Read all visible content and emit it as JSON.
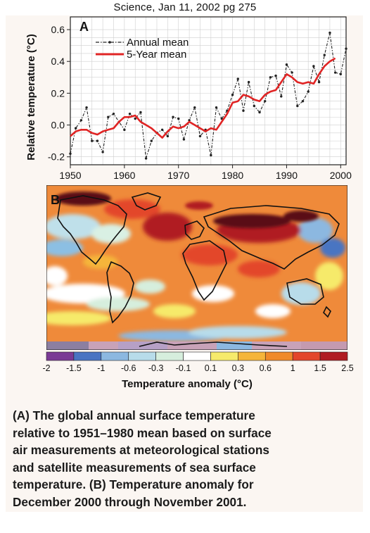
{
  "header": {
    "text": "Science, Jan 11, 2002 pg 275"
  },
  "chart_data": [
    {
      "type": "line",
      "panel_label": "A",
      "ylabel": "Relative temperature (°C)",
      "xlim": [
        1950,
        2001
      ],
      "ylim": [
        -0.25,
        0.68
      ],
      "x_ticks": [
        1950,
        1960,
        1970,
        1980,
        1990,
        2000
      ],
      "x_tick_labels": [
        "1950",
        "1960",
        "1970",
        "1980",
        "1990",
        "2000"
      ],
      "y_ticks": [
        -0.2,
        0.0,
        0.2,
        0.4,
        0.6
      ],
      "y_tick_labels": [
        "-0.2",
        "0.0",
        "0.2",
        "0.4",
        "0.6"
      ],
      "grid": true,
      "legend_position": "top-left",
      "series": [
        {
          "name": "Annual mean",
          "style": "dash-dot-markers",
          "color": "#222222",
          "x": [
            1950,
            1951,
            1952,
            1953,
            1954,
            1955,
            1956,
            1957,
            1958,
            1959,
            1960,
            1961,
            1962,
            1963,
            1964,
            1965,
            1966,
            1967,
            1968,
            1969,
            1970,
            1971,
            1972,
            1973,
            1974,
            1975,
            1976,
            1977,
            1978,
            1979,
            1980,
            1981,
            1982,
            1983,
            1984,
            1985,
            1986,
            1987,
            1988,
            1989,
            1990,
            1991,
            1992,
            1993,
            1994,
            1995,
            1996,
            1997,
            1998,
            1999,
            2000,
            2001
          ],
          "values": [
            -0.18,
            -0.02,
            0.03,
            0.11,
            -0.1,
            -0.1,
            -0.17,
            0.05,
            0.07,
            0.02,
            -0.03,
            0.07,
            0.04,
            0.08,
            -0.21,
            -0.1,
            -0.05,
            -0.03,
            -0.07,
            0.05,
            0.04,
            -0.09,
            0.03,
            0.11,
            -0.07,
            -0.03,
            -0.19,
            0.11,
            0.04,
            0.09,
            0.19,
            0.29,
            0.09,
            0.27,
            0.12,
            0.08,
            0.15,
            0.3,
            0.31,
            0.18,
            0.38,
            0.33,
            0.12,
            0.15,
            0.21,
            0.37,
            0.27,
            0.44,
            0.58,
            0.33,
            0.32,
            0.48
          ]
        },
        {
          "name": "5-Year mean",
          "style": "solid",
          "color": "#e02424",
          "x": [
            1950,
            1951,
            1952,
            1953,
            1954,
            1955,
            1956,
            1957,
            1958,
            1959,
            1960,
            1961,
            1962,
            1963,
            1964,
            1965,
            1966,
            1967,
            1968,
            1969,
            1970,
            1971,
            1972,
            1973,
            1974,
            1975,
            1976,
            1977,
            1978,
            1979,
            1980,
            1981,
            1982,
            1983,
            1984,
            1985,
            1986,
            1987,
            1988,
            1989,
            1990,
            1991,
            1992,
            1993,
            1994,
            1995,
            1996,
            1997,
            1998,
            1999
          ],
          "values": [
            -0.07,
            -0.04,
            -0.03,
            -0.03,
            -0.05,
            -0.06,
            -0.04,
            -0.03,
            -0.02,
            0.02,
            0.05,
            0.05,
            0.06,
            0.02,
            0.0,
            -0.02,
            -0.05,
            -0.08,
            -0.04,
            -0.01,
            -0.02,
            -0.01,
            0.02,
            0.0,
            -0.02,
            -0.04,
            -0.02,
            -0.03,
            0.02,
            0.07,
            0.14,
            0.15,
            0.19,
            0.18,
            0.16,
            0.15,
            0.19,
            0.21,
            0.22,
            0.27,
            0.32,
            0.3,
            0.27,
            0.26,
            0.27,
            0.26,
            0.32,
            0.37,
            0.4,
            0.42
          ]
        }
      ]
    },
    {
      "type": "heatmap",
      "panel_label": "B",
      "description_type": "world-map",
      "grid": false
    },
    {
      "type": "colorbar",
      "title": "Temperature anomaly (°C)",
      "tick_labels": [
        "-2",
        "-1.5",
        "-1",
        "-0.6",
        "-0.3",
        "-0.1",
        "0.1",
        "0.3",
        "0.6",
        "1",
        "1.5",
        "2.5"
      ],
      "colors": [
        "#7a3a95",
        "#4a74c2",
        "#8cb8e0",
        "#b8dcea",
        "#d6eedd",
        "#ffffff",
        "#f6ea6b",
        "#f5b53a",
        "#f08a2a",
        "#e3462a",
        "#b01c22",
        "#5a0e14"
      ]
    }
  ],
  "caption": {
    "lines": [
      "(A) The global annual surface temperature",
      "relative to 1951–1980 mean based on surface",
      "air measurements at meteorological stations",
      "and satellite measurements of sea surface",
      "temperature. (B) Temperature anomaly for",
      "December 2000 through November 2001."
    ]
  }
}
